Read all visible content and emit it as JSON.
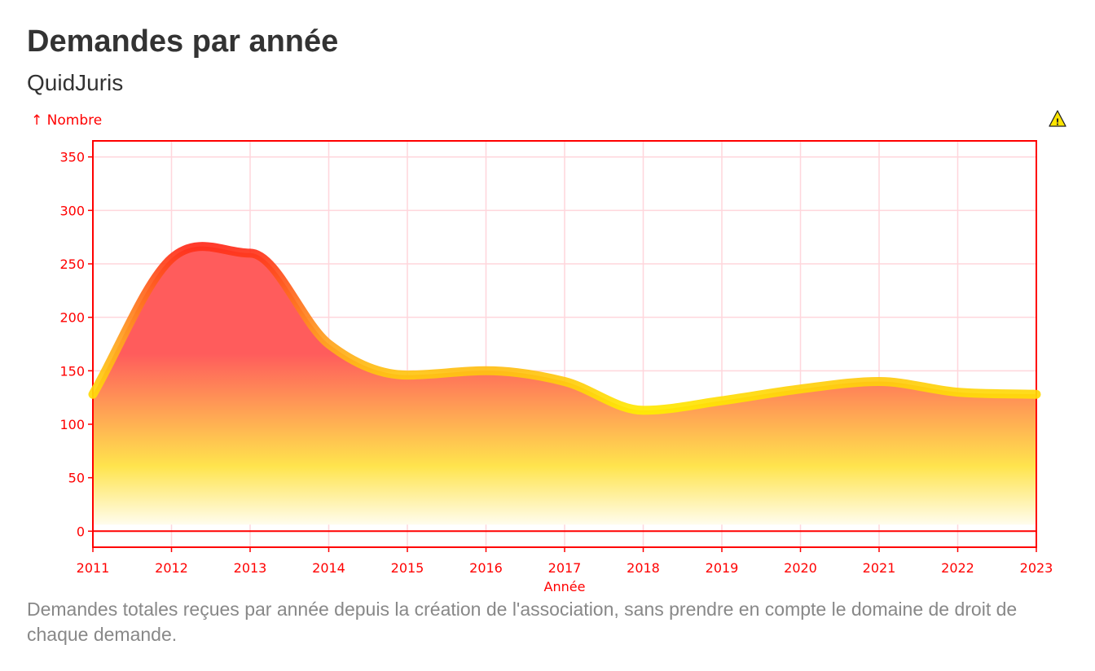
{
  "title": "Demandes par année",
  "subtitle": "QuidJuris",
  "warning_icon": "warning-icon",
  "caption": "Demandes totales reçues par année depuis la création de l'association, sans prendre en compte le domaine de droit de chaque demande.",
  "colors": {
    "axis": "#ff0000",
    "grid": "#ffd6dc",
    "line_top": "#ff1a1a",
    "line_mid": "#ffa21f",
    "line_bottom": "#ffee00",
    "area_top": "#ff5c5c",
    "area_mid": "#ffe44d",
    "area_bottom": "#ffffff"
  },
  "chart_data": {
    "type": "area",
    "xlabel": "Année",
    "ylabel": "↑ Nombre",
    "x": [
      2011,
      2012,
      2013,
      2014,
      2015,
      2016,
      2017,
      2018,
      2019,
      2020,
      2021,
      2022,
      2023
    ],
    "xticks": [
      "2011",
      "2012",
      "2013",
      "2014",
      "2015",
      "2016",
      "2017",
      "2018",
      "2019",
      "2020",
      "2021",
      "2022",
      "2023"
    ],
    "series": [
      {
        "values": [
          128,
          255,
          260,
          175,
          146,
          150,
          140,
          113,
          122,
          133,
          140,
          130,
          128
        ]
      }
    ],
    "yticks": [
      0,
      50,
      100,
      150,
      200,
      250,
      300,
      350
    ],
    "xlim": [
      2011,
      2023
    ],
    "ylim": [
      -15,
      365
    ],
    "grid": true,
    "curve": "smooth"
  }
}
